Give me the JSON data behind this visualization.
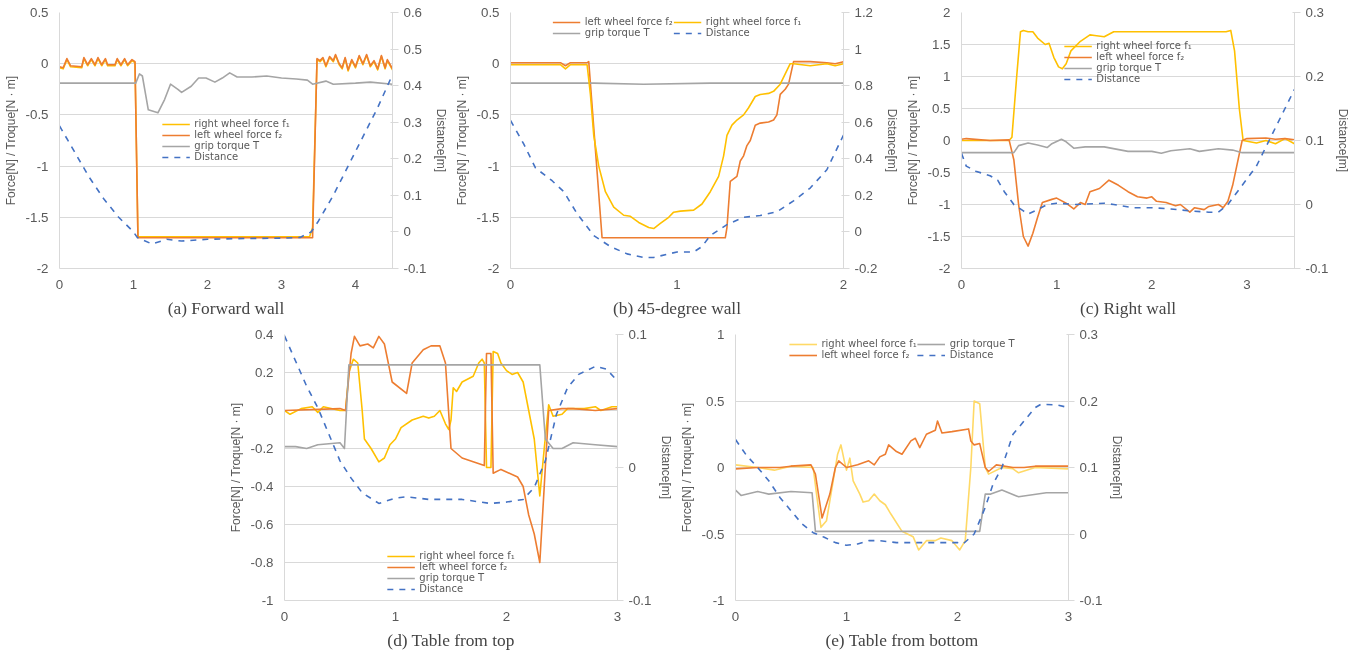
{
  "chart_data": [
    {
      "type": "line",
      "xlim": [
        0,
        4.5
      ],
      "xticks": [
        0,
        1,
        2,
        3,
        4
      ],
      "ylim": [
        -2,
        0.5
      ],
      "yticks": [
        -2,
        -1.5,
        -1,
        -0.5,
        0,
        0.5
      ],
      "y2lim": [
        -0.1,
        0.6
      ],
      "y2ticks": [
        -0.1,
        0,
        0.1,
        0.2,
        0.3,
        0.4,
        0.5,
        0.6
      ],
      "ylabel": "Force[N] / Troque[N · m]",
      "y2label": "Distance[m]",
      "grid": "y",
      "legend": "center",
      "line_style": "solid",
      "annotations": [
        "(a) Forward wall"
      ],
      "series": [
        {
          "name": "right wheel force f₁",
          "color": "#ffc000",
          "x": [
            0,
            0.05,
            0.1,
            0.15,
            0.3,
            0.33,
            0.38,
            0.43,
            0.48,
            0.52,
            0.57,
            0.62,
            0.65,
            0.75,
            0.78,
            0.83,
            0.88,
            0.92,
            0.98,
            1.02,
            1.06,
            3.38,
            3.42,
            3.48,
            3.52,
            3.56,
            3.6,
            3.65,
            3.7,
            3.73,
            3.78,
            3.82,
            3.86,
            3.9,
            3.95,
            4.0,
            4.05,
            4.1,
            4.15,
            4.2,
            4.25,
            4.3,
            4.35,
            4.4,
            4.43,
            4.5
          ],
          "values": [
            -0.04,
            -0.05,
            0.04,
            -0.03,
            -0.04,
            0.05,
            -0.02,
            0.04,
            -0.02,
            0.05,
            -0.02,
            0.04,
            -0.02,
            -0.02,
            0.04,
            -0.02,
            0.04,
            -0.02,
            0.03,
            0.01,
            -1.69,
            -1.69,
            -1.6,
            0.04,
            0.02,
            0.05,
            -0.03,
            0.06,
            0.02,
            0.08,
            -0.01,
            -0.05,
            0.05,
            -0.07,
            0.03,
            -0.04,
            0.07,
            -0.01,
            0.08,
            -0.03,
            0.02,
            -0.06,
            0.07,
            -0.05,
            0.03,
            -0.06
          ]
        },
        {
          "name": "left wheel force f₂",
          "color": "#ed7d31",
          "x": [
            0,
            0.05,
            0.1,
            0.15,
            0.3,
            0.33,
            0.38,
            0.43,
            0.48,
            0.52,
            0.57,
            0.62,
            0.65,
            0.75,
            0.78,
            0.83,
            0.88,
            0.92,
            0.98,
            1.02,
            1.06,
            3.42,
            3.48,
            3.52,
            3.56,
            3.6,
            3.65,
            3.7,
            3.73,
            3.78,
            3.82,
            3.86,
            3.9,
            3.95,
            4.0,
            4.05,
            4.1,
            4.15,
            4.2,
            4.25,
            4.3,
            4.35,
            4.4,
            4.43,
            4.5
          ],
          "values": [
            -0.03,
            -0.04,
            0.05,
            -0.02,
            -0.03,
            0.06,
            -0.01,
            0.05,
            -0.01,
            0.06,
            -0.01,
            0.05,
            -0.01,
            -0.01,
            0.05,
            -0.01,
            0.05,
            -0.01,
            0.04,
            0.02,
            -1.7,
            -1.7,
            0.05,
            0.03,
            0.06,
            -0.02,
            0.07,
            0.03,
            0.09,
            0.0,
            -0.04,
            0.06,
            -0.06,
            0.04,
            -0.03,
            0.08,
            0.0,
            0.09,
            -0.02,
            0.03,
            -0.05,
            0.08,
            -0.04,
            0.04,
            -0.05
          ]
        },
        {
          "name": "grip torque T",
          "color": "#a5a5a5",
          "x": [
            0,
            0.5,
            1.03,
            1.08,
            1.12,
            1.2,
            1.33,
            1.42,
            1.5,
            1.6,
            1.65,
            1.78,
            1.88,
            1.98,
            2.1,
            2.2,
            2.3,
            2.4,
            2.6,
            2.8,
            3.0,
            3.2,
            3.35,
            3.42,
            3.6,
            3.7,
            4.0,
            4.2,
            4.5
          ],
          "values": [
            -0.19,
            -0.19,
            -0.19,
            -0.1,
            -0.12,
            -0.45,
            -0.48,
            -0.35,
            -0.2,
            -0.25,
            -0.28,
            -0.22,
            -0.14,
            -0.14,
            -0.18,
            -0.14,
            -0.09,
            -0.13,
            -0.13,
            -0.12,
            -0.14,
            -0.15,
            -0.16,
            -0.2,
            -0.17,
            -0.2,
            -0.19,
            -0.18,
            -0.2
          ]
        },
        {
          "name": "Distance",
          "color": "#4472c4",
          "axis": "y2",
          "line_style": "dashed",
          "x": [
            0,
            0.2,
            0.4,
            0.6,
            0.8,
            1.0,
            1.05,
            1.25,
            1.45,
            1.65,
            2.0,
            2.5,
            3.0,
            3.25,
            3.4,
            3.5,
            3.7,
            3.9,
            4.1,
            4.3,
            4.5
          ],
          "values": [
            0.29,
            0.22,
            0.15,
            0.09,
            0.04,
            0.0,
            -0.015,
            -0.033,
            -0.02,
            -0.025,
            -0.02,
            -0.018,
            -0.017,
            -0.015,
            0.0,
            0.03,
            0.1,
            0.18,
            0.26,
            0.34,
            0.43
          ]
        }
      ]
    },
    {
      "type": "line",
      "xlim": [
        0,
        2
      ],
      "xticks": [
        0,
        1,
        2
      ],
      "ylim": [
        -2,
        0.5
      ],
      "yticks": [
        -2,
        -1.5,
        -1,
        -0.5,
        0,
        0.5
      ],
      "y2lim": [
        -0.2,
        1.2
      ],
      "y2ticks": [
        -0.2,
        0,
        0.2,
        0.4,
        0.6,
        0.8,
        1,
        1.2
      ],
      "ylabel": "Force[N] / Troque[N · m]",
      "y2label": "Distance[m]",
      "grid": "y",
      "legend": "top",
      "line_style": "solid",
      "annotations": [
        "(b) 45-degree wall"
      ],
      "series": [
        {
          "name": "left wheel force f₂",
          "color": "#ed7d31",
          "x": [
            0,
            0.3,
            0.33,
            0.36,
            0.46,
            0.47,
            0.55,
            0.6,
            1.29,
            1.3,
            1.32,
            1.36,
            1.38,
            1.4,
            1.42,
            1.44,
            1.47,
            1.5,
            1.55,
            1.58,
            1.6,
            1.62,
            1.65,
            1.67,
            1.7,
            1.8,
            1.9,
            1.95,
            2.0
          ],
          "values": [
            0.01,
            0.01,
            -0.02,
            0.01,
            0.01,
            0.02,
            -1.7,
            -1.7,
            -1.7,
            -1.6,
            -1.15,
            -1.1,
            -0.95,
            -0.9,
            -0.8,
            -0.75,
            -0.6,
            -0.58,
            -0.57,
            -0.55,
            -0.5,
            -0.3,
            -0.25,
            -0.2,
            0.02,
            0.02,
            0.01,
            0.0,
            0.02
          ]
        },
        {
          "name": "grip torque T",
          "color": "#a5a5a5",
          "x": [
            0,
            0.5,
            0.8,
            1.2,
            1.6,
            2.0
          ],
          "values": [
            -0.19,
            -0.19,
            -0.2,
            -0.19,
            -0.19,
            -0.19
          ]
        },
        {
          "name": "right wheel force f₁",
          "color": "#ffc000",
          "x": [
            0,
            0.3,
            0.33,
            0.36,
            0.46,
            0.48,
            0.5,
            0.53,
            0.57,
            0.62,
            0.68,
            0.72,
            0.77,
            0.83,
            0.86,
            0.9,
            0.95,
            0.98,
            1.02,
            1.1,
            1.15,
            1.2,
            1.25,
            1.28,
            1.3,
            1.33,
            1.36,
            1.4,
            1.43,
            1.47,
            1.5,
            1.55,
            1.58,
            1.62,
            1.65,
            1.68,
            1.7,
            1.8,
            1.9,
            1.95,
            2.0
          ],
          "values": [
            -0.01,
            -0.01,
            -0.05,
            -0.01,
            -0.01,
            -0.3,
            -0.7,
            -1.0,
            -1.25,
            -1.4,
            -1.48,
            -1.49,
            -1.55,
            -1.6,
            -1.61,
            -1.56,
            -1.5,
            -1.45,
            -1.44,
            -1.43,
            -1.37,
            -1.25,
            -1.1,
            -0.9,
            -0.7,
            -0.6,
            -0.55,
            -0.5,
            -0.43,
            -0.32,
            -0.3,
            -0.29,
            -0.27,
            -0.2,
            -0.1,
            0.0,
            0.0,
            -0.02,
            0.0,
            -0.02,
            0.0
          ]
        },
        {
          "name": "Distance",
          "color": "#4472c4",
          "axis": "y2",
          "line_style": "dashed",
          "x": [
            0,
            0.08,
            0.15,
            0.25,
            0.32,
            0.4,
            0.5,
            0.6,
            0.7,
            0.8,
            0.86,
            0.95,
            1.0,
            1.1,
            1.15,
            1.2,
            1.3,
            1.4,
            1.5,
            1.6,
            1.7,
            1.8,
            1.9,
            2.0
          ],
          "values": [
            0.61,
            0.48,
            0.35,
            0.28,
            0.22,
            0.1,
            -0.02,
            -0.08,
            -0.12,
            -0.14,
            -0.14,
            -0.12,
            -0.11,
            -0.11,
            -0.08,
            -0.02,
            0.04,
            0.08,
            0.09,
            0.11,
            0.17,
            0.24,
            0.34,
            0.53
          ]
        }
      ]
    },
    {
      "type": "line",
      "xlim": [
        0,
        3.5
      ],
      "xticks": [
        0,
        1,
        2,
        3
      ],
      "ylim": [
        -2,
        2
      ],
      "yticks": [
        -2,
        -1.5,
        -1,
        -0.5,
        0,
        0.5,
        1,
        1.5,
        2
      ],
      "y2lim": [
        -0.1,
        0.3
      ],
      "y2ticks": [
        -0.1,
        0,
        0.1,
        0.2,
        0.3
      ],
      "ylabel": "Force[N] / Troque[N · m]",
      "y2label": "Distance[m]",
      "grid": "y",
      "legend": "top center",
      "line_style": "solid",
      "annotations": [
        "(c) Right wall"
      ],
      "series": [
        {
          "name": "right wheel force f₁",
          "color": "#ffc000",
          "x": [
            0,
            0.5,
            0.53,
            0.58,
            0.62,
            0.65,
            0.7,
            0.75,
            0.8,
            0.88,
            0.92,
            0.97,
            1.02,
            1.06,
            1.1,
            1.15,
            1.25,
            1.35,
            1.4,
            1.5,
            1.6,
            2.0,
            2.5,
            2.78,
            2.83,
            2.87,
            2.92,
            2.96,
            3.1,
            3.2,
            3.3,
            3.4,
            3.5
          ],
          "values": [
            0.0,
            0.0,
            0.05,
            1.0,
            1.7,
            1.72,
            1.7,
            1.7,
            1.6,
            1.5,
            1.52,
            1.3,
            1.15,
            1.12,
            1.2,
            1.4,
            1.55,
            1.65,
            1.64,
            1.62,
            1.7,
            1.7,
            1.7,
            1.7,
            1.72,
            1.4,
            0.5,
            0.0,
            -0.04,
            0.0,
            -0.05,
            0.03,
            -0.05
          ]
        },
        {
          "name": "left wheel force f₂",
          "color": "#ed7d31",
          "x": [
            0,
            0.05,
            0.3,
            0.5,
            0.55,
            0.6,
            0.65,
            0.7,
            0.75,
            0.8,
            0.85,
            0.95,
            1.0,
            1.1,
            1.18,
            1.25,
            1.3,
            1.35,
            1.45,
            1.55,
            1.65,
            1.75,
            1.85,
            1.95,
            2.0,
            2.05,
            2.15,
            2.25,
            2.3,
            2.4,
            2.45,
            2.55,
            2.6,
            2.7,
            2.75,
            2.8,
            2.85,
            2.9,
            2.95,
            3.0,
            3.2,
            3.3,
            3.4,
            3.5
          ],
          "values": [
            0.02,
            0.03,
            0.0,
            0.01,
            -0.3,
            -1.0,
            -1.5,
            -1.65,
            -1.45,
            -1.2,
            -0.97,
            -0.92,
            -0.9,
            -0.98,
            -1.07,
            -0.97,
            -1.0,
            -0.8,
            -0.75,
            -0.62,
            -0.7,
            -0.8,
            -0.88,
            -0.9,
            -0.88,
            -0.95,
            -0.97,
            -1.02,
            -1.0,
            -1.12,
            -1.05,
            -1.08,
            -1.03,
            -1.0,
            -1.05,
            -0.95,
            -0.7,
            -0.35,
            0.0,
            0.03,
            0.04,
            0.02,
            0.03,
            0.01
          ]
        },
        {
          "name": "grip torque T",
          "color": "#a5a5a5",
          "x": [
            0,
            0.55,
            0.6,
            0.7,
            0.8,
            0.9,
            0.95,
            1.05,
            1.1,
            1.18,
            1.3,
            1.5,
            1.75,
            2.0,
            2.1,
            2.2,
            2.4,
            2.5,
            2.7,
            2.85,
            2.95,
            3.5
          ],
          "values": [
            -0.19,
            -0.19,
            -0.08,
            -0.04,
            -0.07,
            -0.11,
            -0.05,
            0.02,
            -0.02,
            -0.12,
            -0.1,
            -0.1,
            -0.17,
            -0.17,
            -0.2,
            -0.16,
            -0.13,
            -0.17,
            -0.13,
            -0.15,
            -0.19,
            -0.19
          ]
        },
        {
          "name": "Distance",
          "color": "#4472c4",
          "axis": "y2",
          "line_style": "dashed",
          "x": [
            0,
            0.05,
            0.15,
            0.3,
            0.38,
            0.45,
            0.55,
            0.65,
            0.7,
            0.8,
            0.9,
            1.0,
            1.2,
            1.5,
            1.6,
            1.8,
            2.0,
            2.2,
            2.4,
            2.6,
            2.7,
            2.8,
            2.9,
            3.0,
            3.1,
            3.2,
            3.3,
            3.4,
            3.5
          ],
          "values": [
            0.08,
            0.06,
            0.052,
            0.045,
            0.038,
            0.02,
            0.0,
            -0.01,
            -0.015,
            -0.008,
            0.0,
            0.002,
            0.0,
            0.002,
            0.0,
            -0.005,
            -0.005,
            -0.007,
            -0.01,
            -0.012,
            -0.012,
            0.0,
            0.02,
            0.04,
            0.06,
            0.09,
            0.12,
            0.15,
            0.18
          ]
        }
      ]
    },
    {
      "type": "line",
      "xlim": [
        0,
        3
      ],
      "xticks": [
        0,
        1,
        2,
        3
      ],
      "ylim": [
        -1,
        0.4
      ],
      "yticks": [
        -1,
        -0.8,
        -0.6,
        -0.4,
        -0.2,
        0,
        0.2,
        0.4
      ],
      "y2lim": [
        -0.1,
        0.1
      ],
      "y2ticks": [
        -0.1,
        0,
        0.1
      ],
      "ylabel": "Force[N] / Troque[N · m]",
      "y2label": "Distance[m]",
      "grid": "y",
      "legend": "bottom",
      "line_style": "solid",
      "annotations": [
        "(d) Table from top"
      ],
      "series": [
        {
          "name": "right wheel force f₁",
          "color": "#ffc000",
          "x": [
            0,
            0.05,
            0.15,
            0.25,
            0.3,
            0.35,
            0.5,
            0.55,
            0.58,
            0.62,
            0.66,
            0.7,
            0.72,
            0.78,
            0.85,
            0.9,
            0.95,
            1.0,
            1.05,
            1.15,
            1.25,
            1.3,
            1.35,
            1.4,
            1.45,
            1.48,
            1.5,
            1.52,
            1.55,
            1.6,
            1.7,
            1.75,
            1.78,
            1.8,
            1.82,
            1.86,
            1.88,
            1.92,
            1.95,
            2.0,
            2.05,
            2.1,
            2.15,
            2.2,
            2.25,
            2.3,
            2.34,
            2.38,
            2.42,
            2.5,
            2.55,
            2.7,
            2.8,
            2.85,
            2.95,
            3.0
          ],
          "values": [
            0.0,
            -0.02,
            0.01,
            0.02,
            -0.01,
            0.02,
            0.0,
            0.0,
            0.2,
            0.27,
            0.25,
            0.0,
            -0.15,
            -0.2,
            -0.27,
            -0.25,
            -0.18,
            -0.15,
            -0.09,
            -0.05,
            -0.03,
            -0.04,
            -0.03,
            0.0,
            -0.07,
            -0.1,
            -0.05,
            0.12,
            0.1,
            0.15,
            0.18,
            0.25,
            0.27,
            0.25,
            -0.3,
            -0.3,
            0.31,
            0.3,
            0.25,
            0.21,
            0.19,
            0.2,
            0.15,
            0.0,
            -0.15,
            -0.45,
            -0.2,
            0.03,
            -0.03,
            -0.02,
            0.01,
            0.01,
            0.02,
            0.0,
            0.02,
            0.02
          ]
        },
        {
          "name": "left wheel force f₂",
          "color": "#ed7d31",
          "x": [
            0,
            0.5,
            0.55,
            0.6,
            0.63,
            0.68,
            0.75,
            0.8,
            0.85,
            0.9,
            0.97,
            1.1,
            1.15,
            1.25,
            1.32,
            1.4,
            1.45,
            1.5,
            1.6,
            1.7,
            1.8,
            1.82,
            1.86,
            1.88,
            1.95,
            2.1,
            2.15,
            2.2,
            2.25,
            2.3,
            2.34,
            2.38,
            2.5,
            2.6,
            2.8,
            3.0
          ],
          "values": [
            0.0,
            0.01,
            0.0,
            0.3,
            0.39,
            0.34,
            0.35,
            0.33,
            0.39,
            0.35,
            0.15,
            0.09,
            0.25,
            0.32,
            0.34,
            0.34,
            0.25,
            -0.2,
            -0.25,
            -0.27,
            -0.29,
            0.3,
            0.3,
            -0.33,
            -0.31,
            -0.35,
            -0.4,
            -0.55,
            -0.65,
            -0.8,
            -0.4,
            0.0,
            0.01,
            0.01,
            0.0,
            0.01
          ]
        },
        {
          "name": "grip torque T",
          "color": "#a5a5a5",
          "x": [
            0,
            0.1,
            0.2,
            0.3,
            0.5,
            0.54,
            0.58,
            2.3,
            2.35,
            2.42,
            2.5,
            2.6,
            2.8,
            3.0
          ],
          "values": [
            -0.19,
            -0.19,
            -0.2,
            -0.18,
            -0.17,
            -0.2,
            0.24,
            0.24,
            -0.15,
            -0.2,
            -0.2,
            -0.17,
            -0.18,
            -0.19
          ]
        },
        {
          "name": "Distance",
          "color": "#4472c4",
          "axis": "y2",
          "line_style": "dashed",
          "x": [
            0,
            0.2,
            0.3,
            0.4,
            0.5,
            0.6,
            0.7,
            0.85,
            1.0,
            1.1,
            1.3,
            1.6,
            1.85,
            2.0,
            2.15,
            2.25,
            2.35,
            2.45,
            2.55,
            2.65,
            2.8,
            2.9,
            3.0
          ],
          "values": [
            0.099,
            0.061,
            0.045,
            0.025,
            0.005,
            -0.008,
            -0.019,
            -0.027,
            -0.023,
            -0.022,
            -0.024,
            -0.024,
            -0.027,
            -0.026,
            -0.024,
            -0.015,
            0.005,
            0.04,
            0.06,
            0.07,
            0.076,
            0.074,
            0.065
          ]
        }
      ]
    },
    {
      "type": "line",
      "xlim": [
        0,
        3
      ],
      "xticks": [
        0,
        1,
        2,
        3
      ],
      "ylim": [
        -1,
        1
      ],
      "yticks": [
        -1,
        -0.5,
        0,
        0.5,
        1
      ],
      "y2lim": [
        -0.1,
        0.3
      ],
      "y2ticks": [
        -0.1,
        0,
        0.1,
        0.2,
        0.3
      ],
      "ylabel": "Force[N] / Troque[N · m]",
      "y2label": "Distance[m]",
      "grid": "y",
      "legend": "top",
      "line_style": "solid",
      "annotations": [
        "(e) Table from bottom"
      ],
      "series": [
        {
          "name": "right wheel force f₁",
          "color": "#ffd966",
          "x": [
            0,
            0.2,
            0.35,
            0.5,
            0.7,
            0.73,
            0.77,
            0.82,
            0.88,
            0.92,
            0.95,
            0.98,
            1.0,
            1.03,
            1.06,
            1.12,
            1.15,
            1.2,
            1.25,
            1.3,
            1.35,
            1.4,
            1.5,
            1.6,
            1.65,
            1.72,
            1.8,
            1.85,
            1.95,
            2.02,
            2.07,
            2.12,
            2.15,
            2.2,
            2.25,
            2.28,
            2.4,
            2.5,
            2.55,
            2.7,
            3.0
          ],
          "values": [
            0.02,
            0.0,
            -0.02,
            0.01,
            0.0,
            -0.2,
            -0.45,
            -0.4,
            -0.1,
            0.1,
            0.17,
            0.05,
            -0.02,
            0.07,
            -0.1,
            -0.2,
            -0.26,
            -0.25,
            -0.2,
            -0.25,
            -0.28,
            -0.35,
            -0.48,
            -0.52,
            -0.62,
            -0.55,
            -0.55,
            -0.53,
            -0.55,
            -0.62,
            -0.55,
            0.0,
            0.5,
            0.48,
            0.0,
            -0.05,
            0.0,
            -0.01,
            -0.04,
            0.0,
            -0.01
          ]
        },
        {
          "name": "left wheel force f₂",
          "color": "#ed7d31",
          "x": [
            0,
            0.2,
            0.4,
            0.5,
            0.68,
            0.72,
            0.78,
            0.85,
            0.9,
            0.93,
            1.0,
            1.1,
            1.2,
            1.25,
            1.3,
            1.35,
            1.38,
            1.45,
            1.5,
            1.58,
            1.62,
            1.66,
            1.72,
            1.8,
            1.82,
            1.86,
            1.95,
            2.1,
            2.12,
            2.15,
            2.2,
            2.25,
            2.28,
            2.35,
            2.5,
            2.6,
            2.7,
            3.0
          ],
          "values": [
            -0.01,
            0.0,
            0.0,
            0.01,
            0.02,
            -0.05,
            -0.38,
            -0.2,
            0.0,
            0.05,
            0.0,
            0.02,
            0.05,
            0.02,
            0.08,
            0.1,
            0.17,
            0.12,
            0.1,
            0.2,
            0.22,
            0.15,
            0.25,
            0.28,
            0.35,
            0.26,
            0.27,
            0.29,
            0.2,
            0.17,
            0.18,
            0.0,
            -0.03,
            0.02,
            0.0,
            0.0,
            0.01,
            0.01
          ]
        },
        {
          "name": "grip torque T",
          "color": "#a5a5a5",
          "x": [
            0,
            0.05,
            0.2,
            0.3,
            0.5,
            0.69,
            0.72,
            2.2,
            2.25,
            2.3,
            2.4,
            2.55,
            2.8,
            3.0
          ],
          "values": [
            -0.17,
            -0.21,
            -0.18,
            -0.2,
            -0.18,
            -0.19,
            -0.48,
            -0.48,
            -0.2,
            -0.2,
            -0.17,
            -0.22,
            -0.19,
            -0.19
          ]
        },
        {
          "name": "Distance",
          "color": "#4472c4",
          "axis": "y2",
          "line_style": "dashed",
          "x": [
            0,
            0.1,
            0.2,
            0.3,
            0.4,
            0.5,
            0.6,
            0.7,
            0.8,
            0.9,
            1.0,
            1.1,
            1.2,
            1.3,
            1.45,
            1.8,
            2.0,
            2.05,
            2.15,
            2.25,
            2.32,
            2.4,
            2.5,
            2.6,
            2.7,
            2.75,
            2.9,
            3.0
          ],
          "values": [
            0.142,
            0.118,
            0.1,
            0.08,
            0.055,
            0.035,
            0.015,
            0.002,
            -0.005,
            -0.013,
            -0.017,
            -0.015,
            -0.01,
            -0.01,
            -0.013,
            -0.013,
            -0.013,
            -0.015,
            0.0,
            0.04,
            0.075,
            0.1,
            0.15,
            0.17,
            0.19,
            0.195,
            0.194,
            0.19
          ]
        }
      ]
    }
  ]
}
